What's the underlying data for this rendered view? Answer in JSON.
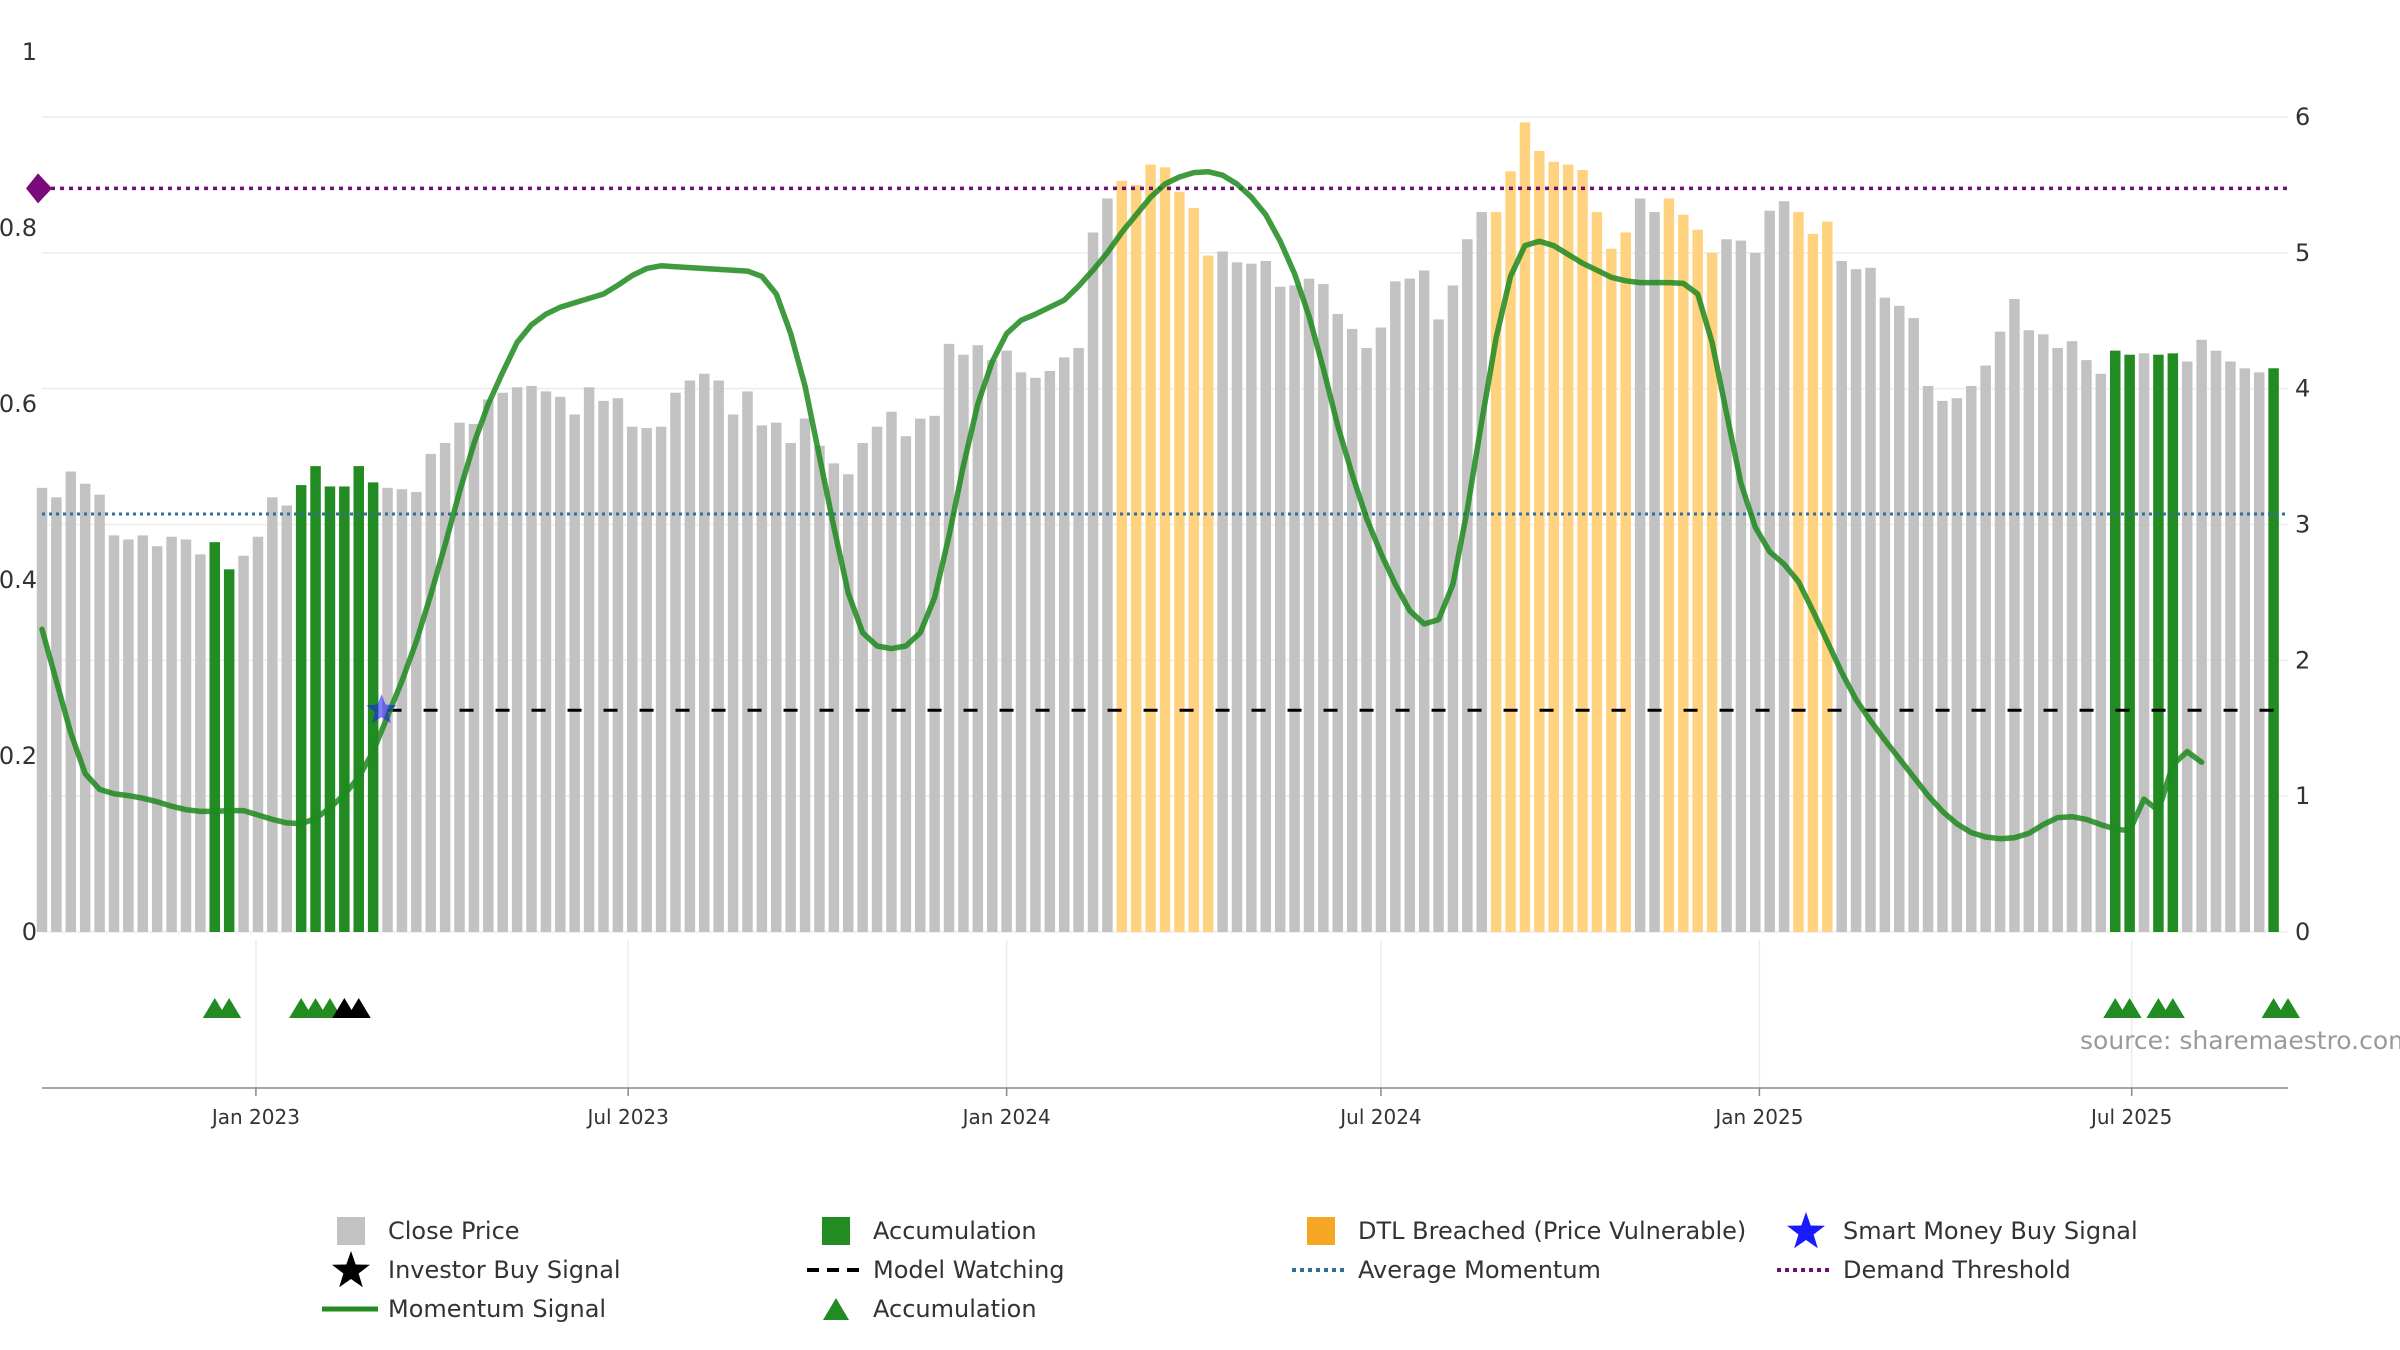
{
  "chart_data": {
    "type": "bar",
    "title": "",
    "xlabel": "",
    "ylabel": "",
    "y_left_ticks": [
      "0",
      "0.2",
      "0.4",
      "0.6",
      "0.8",
      "1"
    ],
    "y_left_range": [
      0,
      1
    ],
    "y_right_ticks": [
      "0",
      "1",
      "2",
      "3",
      "4",
      "5",
      "6"
    ],
    "y_right_range": [
      0,
      6
    ],
    "x_range": [
      "2022-09-19",
      "2025-09-15"
    ],
    "x_ticks": [
      {
        "label": "Jan 2023",
        "date": "2023-01-01"
      },
      {
        "label": "Jul 2023",
        "date": "2023-07-01"
      },
      {
        "label": "Jan 2024",
        "date": "2024-01-01"
      },
      {
        "label": "Jul 2024",
        "date": "2024-07-01"
      },
      {
        "label": "Jan 2025",
        "date": "2025-01-01"
      },
      {
        "label": "Jul 2025",
        "date": "2025-07-01"
      }
    ],
    "bar_start_date": "2022-09-19",
    "bar_interval_days": 7,
    "close_price_values": [
      3.27,
      3.2,
      3.39,
      3.3,
      3.22,
      2.92,
      2.89,
      2.92,
      2.84,
      2.91,
      2.89,
      2.78,
      2.87,
      2.67,
      2.77,
      2.91,
      3.2,
      3.14,
      3.29,
      3.43,
      3.28,
      3.28,
      3.43,
      3.31,
      3.27,
      3.26,
      3.24,
      3.52,
      3.6,
      3.75,
      3.74,
      3.92,
      3.97,
      4.01,
      4.02,
      3.98,
      3.94,
      3.81,
      4.01,
      3.91,
      3.93,
      3.72,
      3.71,
      3.72,
      3.97,
      4.06,
      4.11,
      4.06,
      3.81,
      3.98,
      3.73,
      3.75,
      3.6,
      3.78,
      3.58,
      3.45,
      3.37,
      3.6,
      3.72,
      3.83,
      3.65,
      3.78,
      3.8,
      4.33,
      4.25,
      4.32,
      4.21,
      4.28,
      4.12,
      4.08,
      4.13,
      4.23,
      4.3,
      5.15,
      5.4,
      5.53,
      5.5,
      5.65,
      5.63,
      5.45,
      5.33,
      4.98,
      5.01,
      4.93,
      4.92,
      4.94,
      4.75,
      4.76,
      4.81,
      4.77,
      4.55,
      4.44,
      4.3,
      4.45,
      4.79,
      4.81,
      4.87,
      4.51,
      4.76,
      5.1,
      5.3,
      5.3,
      5.6,
      5.96,
      5.75,
      5.67,
      5.65,
      5.61,
      5.3,
      5.03,
      5.15,
      5.4,
      5.3,
      5.4,
      5.28,
      5.17,
      5.0,
      5.1,
      5.09,
      5.0,
      5.31,
      5.38,
      5.3,
      5.14,
      5.23,
      4.94,
      4.88,
      4.89,
      4.67,
      4.61,
      4.52,
      4.02,
      3.91,
      3.93,
      4.02,
      4.17,
      4.42,
      4.66,
      4.43,
      4.4,
      4.3,
      4.35,
      4.21,
      4.11,
      4.28,
      4.25,
      4.26,
      4.25,
      4.26,
      4.2,
      4.36,
      4.28,
      4.2,
      4.15,
      4.12,
      4.15
    ],
    "accumulation_bar_indices": [
      12,
      13,
      18,
      19,
      20,
      21,
      22,
      23,
      144,
      145,
      147,
      148,
      155,
      156
    ],
    "dtl_breached_bar_indices": [
      75,
      76,
      77,
      78,
      79,
      80,
      81,
      101,
      102,
      103,
      104,
      105,
      106,
      107,
      108,
      109,
      110,
      113,
      114,
      115,
      116,
      122,
      123,
      124
    ],
    "momentum_signal": [
      [
        0,
        0.344
      ],
      [
        1,
        0.285
      ],
      [
        2,
        0.226
      ],
      [
        3,
        0.18
      ],
      [
        4,
        0.162
      ],
      [
        5,
        0.157
      ],
      [
        6,
        0.155
      ],
      [
        7,
        0.152
      ],
      [
        8,
        0.148
      ],
      [
        9,
        0.143
      ],
      [
        10,
        0.139
      ],
      [
        11,
        0.137
      ],
      [
        12,
        0.137
      ],
      [
        13,
        0.138
      ],
      [
        14,
        0.138
      ],
      [
        15,
        0.133
      ],
      [
        16,
        0.128
      ],
      [
        17,
        0.124
      ],
      [
        18,
        0.123
      ],
      [
        19,
        0.129
      ],
      [
        20,
        0.141
      ],
      [
        21,
        0.156
      ],
      [
        22,
        0.176
      ],
      [
        23,
        0.205
      ],
      [
        24,
        0.245
      ],
      [
        25,
        0.285
      ],
      [
        26,
        0.33
      ],
      [
        27,
        0.383
      ],
      [
        28,
        0.44
      ],
      [
        29,
        0.5
      ],
      [
        30,
        0.555
      ],
      [
        31,
        0.6
      ],
      [
        32,
        0.636
      ],
      [
        33,
        0.67
      ],
      [
        34,
        0.69
      ],
      [
        35,
        0.702
      ],
      [
        36,
        0.71
      ],
      [
        37,
        0.715
      ],
      [
        38,
        0.72
      ],
      [
        39,
        0.725
      ],
      [
        40,
        0.735
      ],
      [
        41,
        0.746
      ],
      [
        42,
        0.754
      ],
      [
        43,
        0.757
      ],
      [
        44,
        0.756
      ],
      [
        45,
        0.755
      ],
      [
        46,
        0.754
      ],
      [
        47,
        0.753
      ],
      [
        48,
        0.752
      ],
      [
        49,
        0.751
      ],
      [
        50,
        0.745
      ],
      [
        51,
        0.725
      ],
      [
        52,
        0.68
      ],
      [
        53,
        0.62
      ],
      [
        54,
        0.54
      ],
      [
        55,
        0.46
      ],
      [
        56,
        0.385
      ],
      [
        57,
        0.34
      ],
      [
        58,
        0.325
      ],
      [
        59,
        0.322
      ],
      [
        60,
        0.325
      ],
      [
        61,
        0.34
      ],
      [
        62,
        0.38
      ],
      [
        63,
        0.45
      ],
      [
        64,
        0.53
      ],
      [
        65,
        0.6
      ],
      [
        66,
        0.648
      ],
      [
        67,
        0.68
      ],
      [
        68,
        0.695
      ],
      [
        69,
        0.702
      ],
      [
        70,
        0.71
      ],
      [
        71,
        0.718
      ],
      [
        72,
        0.734
      ],
      [
        73,
        0.752
      ],
      [
        74,
        0.772
      ],
      [
        75,
        0.795
      ],
      [
        76,
        0.815
      ],
      [
        77,
        0.835
      ],
      [
        78,
        0.85
      ],
      [
        79,
        0.858
      ],
      [
        80,
        0.863
      ],
      [
        81,
        0.864
      ],
      [
        82,
        0.86
      ],
      [
        83,
        0.85
      ],
      [
        84,
        0.835
      ],
      [
        85,
        0.815
      ],
      [
        86,
        0.785
      ],
      [
        87,
        0.748
      ],
      [
        88,
        0.7
      ],
      [
        89,
        0.64
      ],
      [
        90,
        0.575
      ],
      [
        91,
        0.52
      ],
      [
        92,
        0.47
      ],
      [
        93,
        0.43
      ],
      [
        94,
        0.395
      ],
      [
        95,
        0.365
      ],
      [
        96,
        0.35
      ],
      [
        97,
        0.355
      ],
      [
        98,
        0.395
      ],
      [
        99,
        0.48
      ],
      [
        100,
        0.58
      ],
      [
        101,
        0.675
      ],
      [
        102,
        0.745
      ],
      [
        103,
        0.78
      ],
      [
        104,
        0.785
      ],
      [
        105,
        0.78
      ],
      [
        106,
        0.77
      ],
      [
        107,
        0.76
      ],
      [
        108,
        0.752
      ],
      [
        109,
        0.744
      ],
      [
        110,
        0.74
      ],
      [
        111,
        0.738
      ],
      [
        112,
        0.738
      ],
      [
        113,
        0.738
      ],
      [
        114,
        0.737
      ],
      [
        115,
        0.725
      ],
      [
        116,
        0.67
      ],
      [
        117,
        0.59
      ],
      [
        118,
        0.51
      ],
      [
        119,
        0.46
      ],
      [
        120,
        0.432
      ],
      [
        121,
        0.418
      ],
      [
        122,
        0.398
      ],
      [
        123,
        0.365
      ],
      [
        124,
        0.33
      ],
      [
        125,
        0.295
      ],
      [
        126,
        0.264
      ],
      [
        127,
        0.24
      ],
      [
        128,
        0.218
      ],
      [
        129,
        0.197
      ],
      [
        130,
        0.176
      ],
      [
        131,
        0.155
      ],
      [
        132,
        0.137
      ],
      [
        133,
        0.123
      ],
      [
        134,
        0.113
      ],
      [
        135,
        0.108
      ],
      [
        136,
        0.106
      ],
      [
        137,
        0.107
      ],
      [
        138,
        0.112
      ],
      [
        139,
        0.122
      ],
      [
        140,
        0.13
      ],
      [
        141,
        0.131
      ],
      [
        142,
        0.128
      ],
      [
        143,
        0.122
      ],
      [
        144,
        0.117
      ],
      [
        145,
        0.115
      ],
      [
        146,
        0.151
      ],
      [
        147,
        0.138
      ],
      [
        148,
        0.19
      ],
      [
        149,
        0.205
      ],
      [
        150,
        0.193
      ]
    ],
    "average_momentum": 0.475,
    "demand_threshold": 0.845,
    "model_watching_level": 0.252,
    "model_watching_start_bar": 24,
    "smart_money_buy_signal": {
      "bar": 24,
      "y": 0.252
    },
    "accumulation_marker_bars": [
      12,
      13,
      18,
      19,
      20,
      144,
      145,
      147,
      148,
      155,
      156
    ],
    "investor_buy_marker_bars": [
      21,
      22
    ],
    "annotation": "source: sharemaestro.com",
    "colors": {
      "close_price": "#c2c2c2",
      "accumulation": "#228b22",
      "dtl_breached": "#ffd27f",
      "momentum": "#1e8a1e",
      "model_watching": "#000000",
      "average_momentum": "#2f6f9a",
      "demand_threshold": "#6e0f75",
      "smart_money": "#1a1aff",
      "investor_buy": "#000000",
      "threshold_marker": "#7a0a7a"
    },
    "legend_placement": "bottom"
  },
  "legend": [
    {
      "label": "Close Price",
      "icon": "square-icon",
      "color": "#c2c2c2"
    },
    {
      "label": "Accumulation",
      "icon": "square-icon",
      "color": "#228b22"
    },
    {
      "label": "DTL Breached (Price Vulnerable)",
      "icon": "square-icon",
      "color": "#f5a623"
    },
    {
      "label": "Smart Money Buy Signal",
      "icon": "star-icon",
      "color": "#1a1aff"
    },
    {
      "label": "Investor Buy Signal",
      "icon": "star-icon",
      "color": "#000000"
    },
    {
      "label": "Model Watching",
      "icon": "dashed-line-icon",
      "color": "#000000"
    },
    {
      "label": "Average Momentum",
      "icon": "dotted-line-icon",
      "color": "#2f6f9a"
    },
    {
      "label": "Demand Threshold",
      "icon": "dotted-line-icon",
      "color": "#6e0f75"
    },
    {
      "label": "Momentum Signal",
      "icon": "solid-line-icon",
      "color": "#228b22"
    },
    {
      "label": "Accumulation",
      "icon": "triangle-icon",
      "color": "#228b22"
    }
  ]
}
